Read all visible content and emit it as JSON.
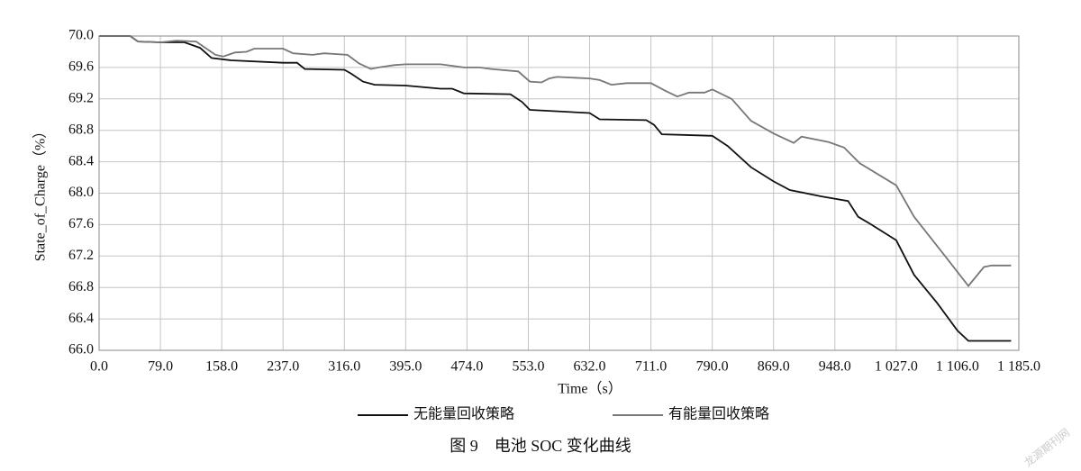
{
  "chart_data": {
    "type": "line",
    "title": "图 9　电池 SOC 变化曲线",
    "x_label": "Time（s）",
    "y_label": "State_of_Charge（%）",
    "watermark": "龙源期刊网",
    "xlim": [
      0,
      1185
    ],
    "ylim": [
      66.0,
      70.0
    ],
    "xticks": [
      {
        "value": 0,
        "label": "0.0"
      },
      {
        "value": 79,
        "label": "79.0"
      },
      {
        "value": 158,
        "label": "158.0"
      },
      {
        "value": 237,
        "label": "237.0"
      },
      {
        "value": 316,
        "label": "316.0"
      },
      {
        "value": 395,
        "label": "395.0"
      },
      {
        "value": 474,
        "label": "474.0"
      },
      {
        "value": 553,
        "label": "553.0"
      },
      {
        "value": 632,
        "label": "632.0"
      },
      {
        "value": 711,
        "label": "711.0"
      },
      {
        "value": 790,
        "label": "790.0"
      },
      {
        "value": 869,
        "label": "869.0"
      },
      {
        "value": 948,
        "label": "948.0"
      },
      {
        "value": 1027,
        "label": "1 027.0"
      },
      {
        "value": 1106,
        "label": "1 106.0"
      },
      {
        "value": 1185,
        "label": "1 185.0"
      }
    ],
    "yticks": [
      {
        "value": 66.0,
        "label": "66.0"
      },
      {
        "value": 66.4,
        "label": "66.4"
      },
      {
        "value": 66.8,
        "label": "66.8"
      },
      {
        "value": 67.2,
        "label": "67.2"
      },
      {
        "value": 67.6,
        "label": "67.6"
      },
      {
        "value": 68.0,
        "label": "68.0"
      },
      {
        "value": 68.4,
        "label": "68.4"
      },
      {
        "value": 68.8,
        "label": "68.8"
      },
      {
        "value": 69.2,
        "label": "69.2"
      },
      {
        "value": 69.6,
        "label": "69.6"
      },
      {
        "value": 70.0,
        "label": "70.0"
      }
    ],
    "grid": true,
    "series": [
      {
        "name": "无能量回收策略",
        "color": "#111111",
        "x": [
          0,
          40,
          50,
          79,
          110,
          130,
          145,
          170,
          237,
          255,
          265,
          316,
          325,
          340,
          355,
          395,
          440,
          455,
          470,
          530,
          545,
          555,
          632,
          645,
          705,
          715,
          725,
          790,
          810,
          840,
          869,
          890,
          930,
          965,
          978,
          995,
          1027,
          1050,
          1080,
          1106,
          1120,
          1175
        ],
        "values": [
          70.0,
          70.0,
          69.93,
          69.92,
          69.92,
          69.85,
          69.72,
          69.69,
          69.66,
          69.66,
          69.58,
          69.57,
          69.52,
          69.42,
          69.38,
          69.37,
          69.33,
          69.33,
          69.27,
          69.26,
          69.16,
          69.06,
          69.02,
          68.94,
          68.93,
          68.87,
          68.75,
          68.73,
          68.6,
          68.33,
          68.15,
          68.04,
          67.96,
          67.9,
          67.7,
          67.6,
          67.4,
          66.96,
          66.6,
          66.25,
          66.12,
          66.12
        ]
      },
      {
        "name": "有能量回收策略",
        "color": "#777777",
        "x": [
          0,
          40,
          50,
          79,
          100,
          125,
          150,
          160,
          175,
          190,
          200,
          237,
          250,
          275,
          290,
          320,
          335,
          350,
          360,
          380,
          395,
          440,
          470,
          490,
          505,
          540,
          555,
          570,
          580,
          590,
          632,
          645,
          660,
          680,
          711,
          730,
          745,
          760,
          780,
          790,
          815,
          840,
          869,
          895,
          905,
          940,
          960,
          980,
          1027,
          1050,
          1090,
          1120,
          1140,
          1150,
          1175
        ],
        "values": [
          70.0,
          70.0,
          69.93,
          69.92,
          69.94,
          69.93,
          69.76,
          69.74,
          69.79,
          69.8,
          69.84,
          69.84,
          69.78,
          69.76,
          69.78,
          69.76,
          69.65,
          69.58,
          69.6,
          69.63,
          69.64,
          69.64,
          69.6,
          69.6,
          69.58,
          69.55,
          69.42,
          69.41,
          69.46,
          69.48,
          69.46,
          69.44,
          69.38,
          69.4,
          69.4,
          69.3,
          69.23,
          69.28,
          69.28,
          69.32,
          69.2,
          68.92,
          68.76,
          68.64,
          68.72,
          68.65,
          68.58,
          68.38,
          68.1,
          67.7,
          67.2,
          66.82,
          67.06,
          67.08,
          67.08
        ]
      }
    ]
  }
}
